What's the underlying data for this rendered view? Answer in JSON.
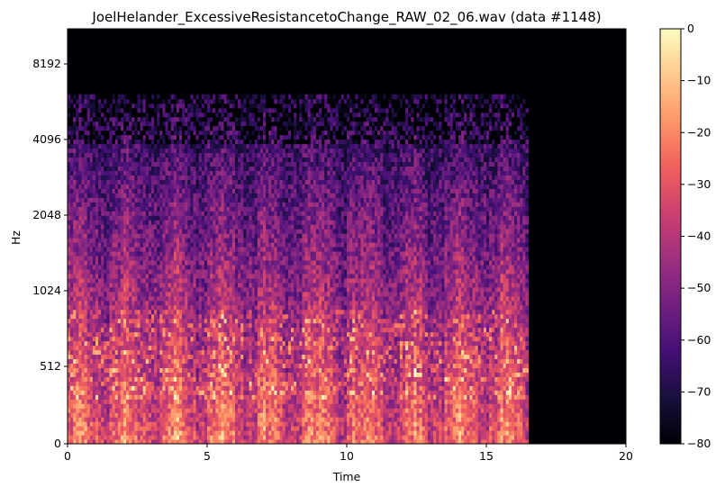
{
  "chart_data": {
    "type": "heatmap",
    "title": "JoelHelander_ExcessiveResistancetoChange_RAW_02_06.wav (data #1148)",
    "xlabel": "Time",
    "ylabel": "Hz",
    "xlim": [
      0,
      20
    ],
    "x_ticks": [
      "0",
      "5",
      "10",
      "15",
      "20"
    ],
    "y_scale": "log",
    "y_ticks": [
      "0",
      "512",
      "1024",
      "2048",
      "4096",
      "8192"
    ],
    "colorbar": {
      "colormap": "magma",
      "range": [
        -80,
        0
      ],
      "ticks": [
        "0",
        "−10",
        "−20",
        "−30",
        "−40",
        "−50",
        "−60",
        "−70",
        "−80"
      ]
    },
    "signal_end_time": 16.5,
    "grid": false,
    "colors": {
      "silence": "#000004",
      "magma": [
        "#000004",
        "#180f3d",
        "#440f76",
        "#721f81",
        "#9e2f7f",
        "#cd4071",
        "#f1605d",
        "#fd9668",
        "#feca8d",
        "#fcfdbf"
      ]
    }
  }
}
